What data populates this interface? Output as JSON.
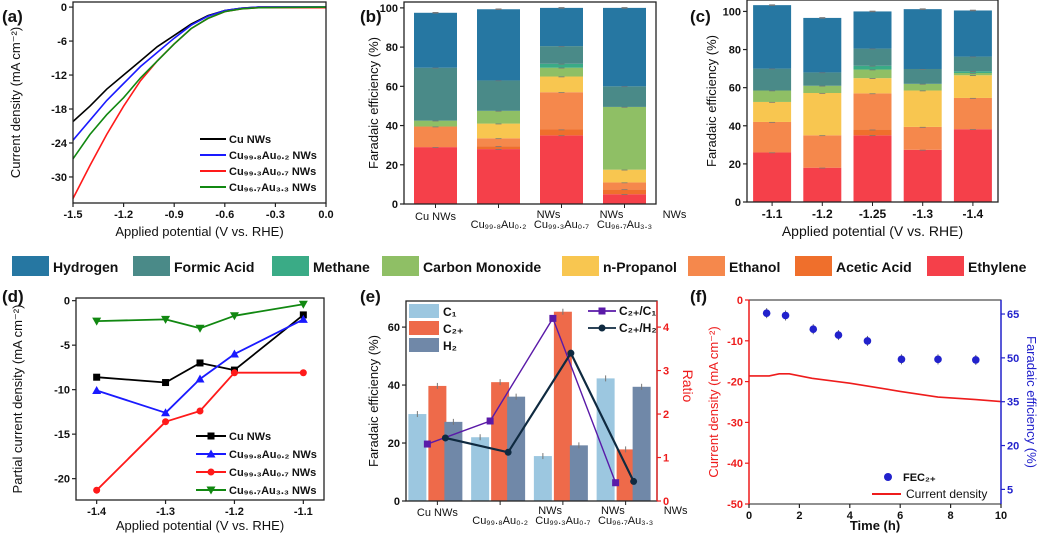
{
  "figure": {
    "panel_labels": [
      "(a)",
      "(b)",
      "(c)",
      "(d)",
      "(e)",
      "(f)"
    ],
    "product_legend": [
      {
        "name": "Hydrogen",
        "color": "#2677a2"
      },
      {
        "name": "Formic Acid",
        "color": "#4a8a88"
      },
      {
        "name": "Methane",
        "color": "#3aab86"
      },
      {
        "name": "Carbon Monoxide",
        "color": "#8fbf65"
      },
      {
        "name": "n-Propanol",
        "color": "#f8c650"
      },
      {
        "name": "Ethanol",
        "color": "#f5884c"
      },
      {
        "name": "Acetic Acid",
        "color": "#ef6f2c"
      },
      {
        "name": "Ethylene",
        "color": "#f5404a"
      }
    ]
  },
  "chart_data": [
    {
      "panel": "a",
      "type": "line",
      "xlabel": "Applied potential (V vs. RHE)",
      "ylabel": "Current density (mA cm⁻²)",
      "xlim": [
        -1.5,
        0.0
      ],
      "ylim": [
        -34.6,
        0.9
      ],
      "xticks": [
        "-1.5",
        "-1.2",
        "-0.9",
        "-0.6",
        "-0.3",
        "0.0"
      ],
      "yticks": [
        "0",
        "-6",
        "-12",
        "-18",
        "-24",
        "-30"
      ],
      "legend_position": "bottom-right",
      "x": [
        -1.5,
        -1.4,
        -1.3,
        -1.2,
        -1.1,
        -1.0,
        -0.9,
        -0.8,
        -0.7,
        -0.6,
        -0.5,
        -0.4,
        0.0
      ],
      "series": [
        {
          "name": "Cu NWs",
          "color": "#000000",
          "values": [
            -20.2,
            -17.5,
            -14.5,
            -12.0,
            -9.5,
            -7.0,
            -5.0,
            -3.0,
            -1.5,
            -0.6,
            -0.2,
            0.0,
            0.0
          ]
        },
        {
          "name": "Cu₉₉.₈Au₀.₂ NWs",
          "color": "#1a1aff",
          "values": [
            -23.5,
            -20.0,
            -16.5,
            -13.5,
            -10.5,
            -8.0,
            -5.5,
            -3.2,
            -1.6,
            -0.6,
            -0.2,
            0.0,
            0.0
          ]
        },
        {
          "name": "Cu₉₉.₃Au₀.₇ NWs",
          "color": "#ff1a1a",
          "values": [
            -33.8,
            -28.0,
            -22.5,
            -17.5,
            -13.0,
            -9.5,
            -6.5,
            -3.8,
            -2.0,
            -0.8,
            -0.3,
            -0.1,
            -0.1
          ]
        },
        {
          "name": "Cu₉₆.₇Au₃.₃ NWs",
          "color": "#118811",
          "values": [
            -26.8,
            -22.5,
            -19.0,
            -16.0,
            -12.5,
            -9.5,
            -6.5,
            -3.8,
            -2.0,
            -0.8,
            -0.3,
            -0.1,
            0.0
          ]
        }
      ]
    },
    {
      "panel": "b",
      "type": "bar",
      "stacked": true,
      "ylabel": "Faradaic efficiency (%)",
      "ylim": [
        0,
        103
      ],
      "yticks": [
        "0",
        "20",
        "40",
        "60",
        "80",
        "100"
      ],
      "categories": [
        {
          "main": "Cu NWs",
          "suffix": ""
        },
        {
          "main": "Cu₉₉.₈Au₀.₂",
          "suffix": "NWs"
        },
        {
          "main": "Cu₉₉.₃Au₀.₇",
          "suffix": "NWs"
        },
        {
          "main": "Cu₉₆.₇Au₃.₃",
          "suffix": "NWs"
        }
      ],
      "series": [
        {
          "name": "Ethylene",
          "values": [
            29.0,
            28.0,
            35.0,
            5.0
          ]
        },
        {
          "name": "Acetic Acid",
          "values": [
            0.0,
            1.5,
            3.0,
            2.5
          ]
        },
        {
          "name": "Ethanol",
          "values": [
            10.5,
            4.0,
            19.0,
            3.5
          ]
        },
        {
          "name": "n-Propanol",
          "values": [
            0.0,
            7.5,
            8.0,
            6.5
          ]
        },
        {
          "name": "Carbon Monoxide",
          "values": [
            3.0,
            6.5,
            4.5,
            32.0
          ]
        },
        {
          "name": "Methane",
          "values": [
            0.0,
            0.0,
            2.0,
            0.0
          ]
        },
        {
          "name": "Formic Acid",
          "values": [
            27.0,
            15.5,
            9.0,
            10.5
          ]
        },
        {
          "name": "Hydrogen",
          "values": [
            28.0,
            36.3,
            19.5,
            40.0
          ]
        }
      ]
    },
    {
      "panel": "c",
      "type": "bar",
      "stacked": true,
      "xlabel": "Applied potential (V vs. RHE)",
      "ylabel": "Faradaic efficiency (%)",
      "ylim": [
        0,
        106
      ],
      "yticks": [
        "0",
        "20",
        "40",
        "60",
        "80",
        "100"
      ],
      "categories": [
        "-1.1",
        "-1.2",
        "-1.25",
        "-1.3",
        "-1.4"
      ],
      "series": [
        {
          "name": "Ethylene",
          "values": [
            26.0,
            18.0,
            35.0,
            27.4,
            38.2
          ]
        },
        {
          "name": "Acetic Acid",
          "values": [
            0.0,
            0.0,
            3.0,
            0.0,
            0.0
          ]
        },
        {
          "name": "Ethanol",
          "values": [
            16.0,
            17.0,
            19.0,
            12.0,
            16.4
          ]
        },
        {
          "name": "n-Propanol",
          "values": [
            10.5,
            22.2,
            8.0,
            19.1,
            11.9
          ]
        },
        {
          "name": "Carbon Monoxide",
          "values": [
            6.0,
            3.8,
            4.5,
            3.5,
            1.2
          ]
        },
        {
          "name": "Methane",
          "values": [
            0.0,
            0.0,
            2.0,
            0.0,
            0.9
          ]
        },
        {
          "name": "Formic Acid",
          "values": [
            11.5,
            7.0,
            9.0,
            7.8,
            7.7
          ]
        },
        {
          "name": "Hydrogen",
          "values": [
            33.3,
            28.6,
            19.5,
            31.4,
            24.2
          ]
        }
      ]
    },
    {
      "panel": "d",
      "type": "line",
      "xlabel": "Applied potential (V vs. RHE)",
      "ylabel": "Partial current density (mA cm⁻²)",
      "xlim": [
        -1.43,
        -1.07
      ],
      "ylim": [
        -22.4,
        0.3
      ],
      "xticks": [
        "-1.4",
        "-1.3",
        "-1.2",
        "-1.1"
      ],
      "yticks": [
        "0",
        "-5",
        "-10",
        "-15",
        "-20"
      ],
      "legend_position": "bottom-right",
      "x": [
        -1.4,
        -1.3,
        -1.25,
        -1.2,
        -1.1
      ],
      "series": [
        {
          "name": "Cu NWs",
          "color": "#000000",
          "marker": "square",
          "values": [
            -8.6,
            -9.2,
            -7.0,
            -7.8,
            -1.6
          ]
        },
        {
          "name": "Cu₉₉.₈Au₀.₂ NWs",
          "color": "#1a1aff",
          "marker": "triangle-up",
          "values": [
            -10.1,
            -12.6,
            -8.8,
            -6.0,
            -2.1
          ]
        },
        {
          "name": "Cu₉₉.₃Au₀.₇ NWs",
          "color": "#ff1a1a",
          "marker": "circle",
          "values": [
            -21.3,
            -13.6,
            -12.4,
            -8.1,
            -8.1
          ]
        },
        {
          "name": "Cu₉₆.₇Au₃.₃ NWs",
          "color": "#118811",
          "marker": "triangle-down",
          "values": [
            -2.3,
            -2.1,
            -3.1,
            -1.7,
            -0.4
          ]
        }
      ]
    },
    {
      "panel": "e",
      "type": "bar",
      "ylabel": "Faradaic efficiency (%)",
      "ylabel_right": "Ratio",
      "ylim": [
        0,
        69
      ],
      "ylim_right": [
        0,
        4.6
      ],
      "yticks": [
        "0",
        "20",
        "40",
        "60"
      ],
      "yticks_right": [
        "0",
        "1",
        "2",
        "3",
        "4"
      ],
      "categories": [
        {
          "main": "Cu NWs",
          "suffix": ""
        },
        {
          "main": "Cu₉₉.₈Au₀.₂",
          "suffix": "NWs"
        },
        {
          "main": "Cu₉₉.₃Au₀.₇",
          "suffix": "NWs"
        },
        {
          "main": "Cu₉₆.₇Au₃.₃",
          "suffix": "NWs"
        }
      ],
      "series": [
        {
          "name": "C₁",
          "color": "#9cc7e0",
          "values": [
            30.0,
            22.0,
            15.5,
            42.3
          ]
        },
        {
          "name": "C₂₊",
          "color": "#ee6a4a",
          "values": [
            39.7,
            41.0,
            65.3,
            17.8
          ]
        },
        {
          "name": "H₂",
          "color": "#7088a8",
          "values": [
            27.3,
            36.0,
            19.2,
            39.4
          ]
        }
      ],
      "ratio_series": [
        {
          "name": "C₂₊/C₁",
          "color": "#5a1aa8",
          "marker": "square",
          "values": [
            1.31,
            1.84,
            4.2,
            0.42
          ]
        },
        {
          "name": "C₂₊/H₂",
          "color": "#0f2a40",
          "marker": "circle",
          "values": [
            1.45,
            1.12,
            3.4,
            0.45
          ]
        }
      ]
    },
    {
      "panel": "f",
      "type": "line",
      "xlabel": "Time (h)",
      "ylabel": "Current density (mA cm⁻²)",
      "ylabel_right": "Faradaic efficiency (%)",
      "xlim": [
        0,
        10
      ],
      "ylim": [
        -50,
        0
      ],
      "ylim_right": [
        0,
        69.8
      ],
      "xticks": [
        "0",
        "2",
        "4",
        "6",
        "8",
        "10"
      ],
      "yticks": [
        "0",
        "-10",
        "-20",
        "-30",
        "-40",
        "-50"
      ],
      "yticks_right": [
        "5",
        "20",
        "35",
        "50",
        "65"
      ],
      "legend_position": "bottom-right",
      "current": {
        "name": "Current density",
        "color": "#ee1c1c",
        "x": [
          0,
          0.8,
          1.2,
          1.6,
          2.5,
          4,
          6,
          7.5,
          9,
          10
        ],
        "values": [
          -18.6,
          -18.6,
          -18.1,
          -18.1,
          -19.2,
          -20.4,
          -22.4,
          -23.8,
          -24.4,
          -24.9
        ]
      },
      "fe": {
        "name": "FEC₂₊",
        "color": "#2222cc",
        "x": [
          0.7,
          1.45,
          2.55,
          3.55,
          4.7,
          6.05,
          7.5,
          9.0
        ],
        "values": [
          65.3,
          64.5,
          59.8,
          57.8,
          55.8,
          49.5,
          49.5,
          49.3
        ]
      }
    }
  ]
}
